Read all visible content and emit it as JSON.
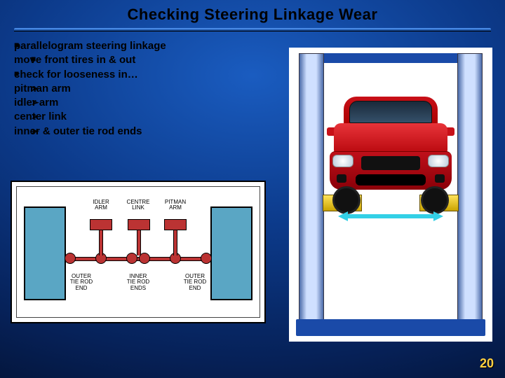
{
  "title": "Checking Steering Linkage Wear",
  "bullets": {
    "b1": "parallelogram steering linkage",
    "b1a": "move front tires in & out",
    "b2": "check for looseness in…",
    "b2a": "pitman arm",
    "b2b": "idler arm",
    "b2c": "center link",
    "b2d": "inner & outer tie rod ends"
  },
  "diagram": {
    "labels": {
      "idler_arm": "IDLER\nARM",
      "centre_link": "CENTRE\nLINK",
      "pitman_arm": "PITMAN\nARM",
      "outer_left": "OUTER\nTIE ROD\nEND",
      "inner_left": "INNER\nTIE ROD\nENDS",
      "outer_right": "OUTER\nTIE ROD\nEND"
    },
    "tire_color": "#5aa6c4",
    "link_color": "#b33333"
  },
  "car": {
    "body_color": "#c81018",
    "lift_column_color": "#cfe0ff",
    "lift_base_color": "#1a4aa8",
    "lift_arm_color": "#ffe35a",
    "arrow_color": "#33d0e6"
  },
  "page_number": "20"
}
